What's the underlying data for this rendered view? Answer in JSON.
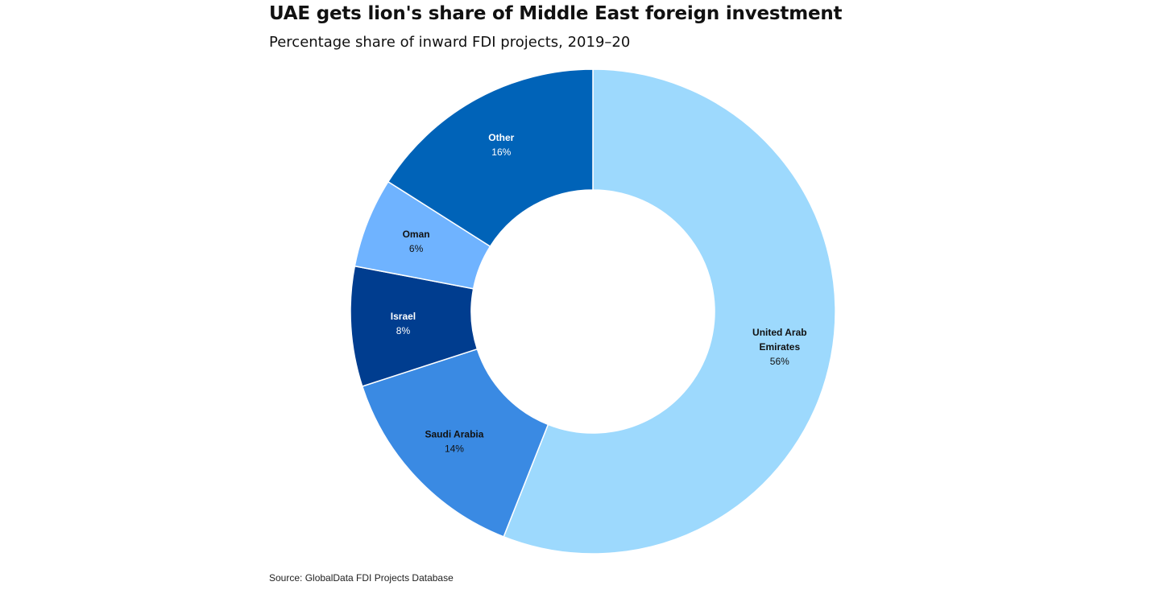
{
  "title": "UAE gets lion's share of Middle East foreign investment",
  "subtitle": "Percentage share of inward FDI projects, 2019–20",
  "source": "Source: GlobalData FDI Projects Database",
  "chart_data": {
    "type": "pie",
    "variant": "donut",
    "title": "UAE gets lion's share of Middle East foreign investment",
    "subtitle": "Percentage share of inward FDI projects, 2019–20",
    "unit": "%",
    "slices": [
      {
        "name": "United Arab Emirates",
        "label_lines": [
          "United Arab",
          "Emirates"
        ],
        "value_label": "56%",
        "value": 56,
        "color": "#9dd9fd"
      },
      {
        "name": "Saudi Arabia",
        "label_lines": [
          "Saudi Arabia"
        ],
        "value_label": "14%",
        "value": 14,
        "color": "#3a8ae3"
      },
      {
        "name": "Israel",
        "label_lines": [
          "Israel"
        ],
        "value_label": "8%",
        "value": 8,
        "color": "#003d8f",
        "label_color": "#ffffff"
      },
      {
        "name": "Oman",
        "label_lines": [
          "Oman"
        ],
        "value_label": "6%",
        "value": 6,
        "color": "#6fb3ff"
      },
      {
        "name": "Other",
        "label_lines": [
          "Other"
        ],
        "value_label": "16%",
        "value": 16,
        "color": "#0063b8",
        "label_color": "#ffffff"
      }
    ],
    "direction": "clockwise from top",
    "legend": "none"
  }
}
